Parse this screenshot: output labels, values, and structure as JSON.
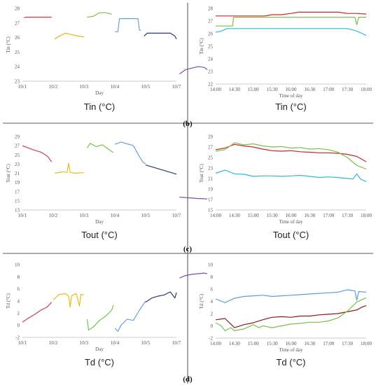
{
  "panel_labels": [
    "(b)",
    "(c)",
    "(d)"
  ],
  "chart_data": [
    {
      "id": "tin-days",
      "type": "line",
      "title": "Tin (°C)",
      "xlabel": "Day",
      "ylabel": "Tin (°C)",
      "categories": [
        "10/1",
        "10/2",
        "10/3",
        "10/4",
        "10/5",
        "10/7"
      ],
      "ylim": [
        23,
        28
      ],
      "yticks": [
        "23",
        "24",
        "25",
        "26",
        "27",
        "28"
      ],
      "series": [
        {
          "color": "#e03030",
          "x": [
            0.05,
            0.1,
            0.3,
            0.6,
            0.95
          ],
          "y": [
            27.35,
            27.4,
            27.4,
            27.4,
            27.4
          ]
        },
        {
          "color": "#e0b020",
          "x": [
            1.05,
            1.2,
            1.4,
            1.6,
            1.8,
            2.0
          ],
          "y": [
            25.9,
            26.1,
            26.3,
            26.2,
            26.1,
            26.05
          ]
        },
        {
          "color": "#7cbf4a",
          "x": [
            2.1,
            2.3,
            2.5,
            2.7,
            2.9
          ],
          "y": [
            27.4,
            27.45,
            27.7,
            27.7,
            27.6
          ]
        },
        {
          "color": "#6aa0d8",
          "x": [
            3.0,
            3.1,
            3.15,
            3.3,
            3.5,
            3.75,
            3.8,
            3.85
          ],
          "y": [
            26.4,
            26.4,
            27.3,
            27.3,
            27.3,
            27.3,
            26.5,
            26.5
          ]
        },
        {
          "color": "#2a3a78",
          "x": [
            3.95,
            4.05,
            4.2,
            4.5,
            4.8,
            4.95,
            5.0
          ],
          "y": [
            26.1,
            26.3,
            26.3,
            26.3,
            26.3,
            26.1,
            25.9
          ]
        },
        {
          "color": "#7a4ea8",
          "x": [
            5.1,
            5.3,
            5.5,
            5.7,
            5.9,
            6.0
          ],
          "y": [
            23.5,
            23.8,
            23.9,
            24.0,
            23.95,
            23.8
          ]
        }
      ]
    },
    {
      "id": "tin-time",
      "type": "line",
      "title": "Tin (°C)",
      "xlabel": "Time of day",
      "ylabel": "Tin (°C)",
      "categories": [
        "14:00",
        "14:30",
        "15:00",
        "15:30",
        "16:00",
        "16:30",
        "17:00",
        "17:30",
        "18:00"
      ],
      "ylim": [
        22,
        28
      ],
      "yticks": [
        "22",
        "23",
        "24",
        "25",
        "26",
        "27",
        "28"
      ],
      "series": [
        {
          "color": "#c0282a",
          "x": [
            0,
            1,
            2,
            2.6,
            3,
            3.5,
            4,
            4.4,
            5,
            6,
            6.5,
            7,
            7.5,
            8
          ],
          "y": [
            27.4,
            27.4,
            27.4,
            27.4,
            27.5,
            27.5,
            27.6,
            27.7,
            27.7,
            27.7,
            27.7,
            27.6,
            27.6,
            27.55
          ]
        },
        {
          "color": "#7cbf4a",
          "x": [
            0,
            0.5,
            0.9,
            0.95,
            1,
            2,
            3,
            4,
            5,
            6,
            7,
            7.4,
            7.5,
            7.6,
            8
          ],
          "y": [
            26.6,
            26.6,
            26.6,
            27.3,
            27.3,
            27.3,
            27.3,
            27.3,
            27.3,
            27.3,
            27.3,
            27.3,
            26.7,
            27.3,
            27.3
          ]
        },
        {
          "color": "#33b6d6",
          "x": [
            0,
            0.3,
            0.6,
            1,
            2,
            3,
            4,
            5,
            6,
            7,
            7.5,
            7.8,
            8
          ],
          "y": [
            26.1,
            26.2,
            26.4,
            26.4,
            26.4,
            26.4,
            26.4,
            26.4,
            26.4,
            26.4,
            26.2,
            26.0,
            25.85
          ]
        }
      ]
    },
    {
      "id": "tout-days",
      "type": "line",
      "title": "Tout (°C)",
      "xlabel": "Day",
      "ylabel": "Tout (°C)",
      "categories": [
        "10/1",
        "10/2",
        "10/3",
        "10/4",
        "10/5",
        "10/7"
      ],
      "ylim": [
        13,
        29
      ],
      "yticks": [
        "13",
        "15",
        "17",
        "19",
        "21",
        "23",
        "25",
        "27",
        "29"
      ],
      "series": [
        {
          "color": "#d04050",
          "x": [
            0.0,
            0.2,
            0.4,
            0.6,
            0.8,
            0.95
          ],
          "y": [
            27.0,
            26.5,
            26.0,
            25.6,
            24.8,
            23.5
          ]
        },
        {
          "color": "#e0c020",
          "x": [
            1.05,
            1.3,
            1.45,
            1.5,
            1.55,
            1.7,
            1.9,
            2.0
          ],
          "y": [
            21.0,
            21.3,
            21.2,
            23.2,
            21.2,
            21.0,
            21.1,
            21.1
          ]
        },
        {
          "color": "#7cbf4a",
          "x": [
            2.1,
            2.2,
            2.4,
            2.6,
            2.8,
            2.95
          ],
          "y": [
            26.5,
            27.5,
            26.8,
            27.2,
            26.2,
            25.5
          ]
        },
        {
          "color": "#6aa0d8",
          "x": [
            3.0,
            3.2,
            3.4,
            3.6,
            3.75,
            3.9,
            4.0
          ],
          "y": [
            27.3,
            27.8,
            27.4,
            27.0,
            25.2,
            23.5,
            23.0
          ]
        },
        {
          "color": "#2a3a78",
          "x": [
            4.0,
            4.2,
            4.4,
            4.6,
            4.8,
            5.0
          ],
          "y": [
            22.8,
            22.4,
            22.0,
            21.6,
            21.2,
            20.8
          ]
        },
        {
          "color": "#7a4ea8",
          "x": [
            5.1,
            5.3,
            5.5,
            5.7,
            5.9,
            6.0
          ],
          "y": [
            15.8,
            15.7,
            15.6,
            15.5,
            15.45,
            15.4
          ]
        }
      ]
    },
    {
      "id": "tout-time",
      "type": "line",
      "title": "Tout (°C)",
      "xlabel": "Time of day",
      "ylabel": "Tout (°C)",
      "categories": [
        "14:00",
        "14:30",
        "15:00",
        "15:30",
        "16:00",
        "16:30",
        "17:00",
        "17:30",
        "18:00"
      ],
      "ylim": [
        15,
        29
      ],
      "yticks": [
        "15",
        "17",
        "19",
        "21",
        "23",
        "25",
        "27",
        "29"
      ],
      "series": [
        {
          "color": "#c0282a",
          "x": [
            0,
            0.5,
            1,
            1.5,
            2,
            2.5,
            3,
            3.5,
            4,
            4.5,
            5,
            5.5,
            6,
            6.5,
            7,
            7.5,
            8
          ],
          "y": [
            26.5,
            26.8,
            27.5,
            27.2,
            27.0,
            26.6,
            26.3,
            26.2,
            26.3,
            26.1,
            26.0,
            25.9,
            25.9,
            25.8,
            25.6,
            25.2,
            24.2
          ]
        },
        {
          "color": "#7cbf4a",
          "x": [
            0,
            0.5,
            1,
            1.5,
            2,
            2.5,
            3,
            3.5,
            4,
            4.5,
            5,
            5.5,
            6,
            6.5,
            7,
            7.5,
            8
          ],
          "y": [
            26.2,
            26.5,
            27.8,
            27.4,
            27.6,
            27.2,
            27.0,
            27.1,
            26.8,
            26.9,
            26.6,
            26.7,
            26.5,
            26.0,
            25.0,
            23.5,
            22.8
          ]
        },
        {
          "color": "#33b6d6",
          "x": [
            0,
            0.5,
            1,
            1.5,
            2,
            2.5,
            3,
            3.5,
            4,
            4.5,
            5,
            5.5,
            6,
            6.5,
            7,
            7.3,
            7.5,
            7.7,
            8
          ],
          "y": [
            22.0,
            22.6,
            21.9,
            21.8,
            21.4,
            21.5,
            21.5,
            21.4,
            21.5,
            21.6,
            21.4,
            21.2,
            21.3,
            21.2,
            21.0,
            20.9,
            21.9,
            20.9,
            20.4
          ]
        }
      ]
    },
    {
      "id": "td-days",
      "type": "line",
      "title": "Td (°C)",
      "xlabel": "Day",
      "ylabel": "Td (°C)",
      "categories": [
        "10/1",
        "10/2",
        "10/3",
        "10/4",
        "10/5",
        "10/7"
      ],
      "ylim": [
        -2,
        10
      ],
      "yticks": [
        "-2",
        "0",
        "2",
        "4",
        "6",
        "8",
        "10"
      ],
      "series": [
        {
          "color": "#d04050",
          "x": [
            0.0,
            0.2,
            0.4,
            0.6,
            0.8,
            0.95
          ],
          "y": [
            0.5,
            1.2,
            1.8,
            2.5,
            3.0,
            3.8
          ]
        },
        {
          "color": "#e0c020",
          "x": [
            1.0,
            1.2,
            1.4,
            1.5,
            1.55,
            1.6,
            1.75,
            1.85,
            1.9,
            2.0
          ],
          "y": [
            4.2,
            5.1,
            5.2,
            4.8,
            3.0,
            4.9,
            5.2,
            3.2,
            5.1,
            5.0
          ]
        },
        {
          "color": "#7cbf4a",
          "x": [
            2.1,
            2.15,
            2.3,
            2.5,
            2.7,
            2.9,
            2.95
          ],
          "y": [
            1.0,
            -0.8,
            -0.3,
            0.8,
            1.5,
            2.5,
            3.3
          ]
        },
        {
          "color": "#6aa0d8",
          "x": [
            3.0,
            3.1,
            3.2,
            3.4,
            3.6,
            3.8,
            4.0
          ],
          "y": [
            -0.5,
            -1.0,
            0.0,
            1.0,
            0.8,
            2.5,
            4.0
          ]
        },
        {
          "color": "#2a3a78",
          "x": [
            4.0,
            4.2,
            4.4,
            4.6,
            4.8,
            4.95,
            5.0
          ],
          "y": [
            3.8,
            4.5,
            4.8,
            5.0,
            5.5,
            4.5,
            5.4
          ]
        },
        {
          "color": "#7a4ea8",
          "x": [
            5.1,
            5.3,
            5.5,
            5.7,
            5.9,
            6.0
          ],
          "y": [
            7.8,
            8.2,
            8.4,
            8.5,
            8.6,
            8.5
          ]
        }
      ]
    },
    {
      "id": "td-time",
      "type": "line",
      "title": "Td (°C)",
      "xlabel": "Time of day",
      "ylabel": "Td (°C)",
      "categories": [
        "14:00",
        "14:30",
        "15:00",
        "15:30",
        "16:00",
        "16:30",
        "17:00",
        "17:30",
        "18:00"
      ],
      "ylim": [
        -2,
        10
      ],
      "yticks": [
        "-2",
        "0",
        "2",
        "4",
        "6",
        "8",
        "10"
      ],
      "series": [
        {
          "color": "#5aa0dc",
          "x": [
            0,
            0.5,
            1,
            1.5,
            2,
            2.5,
            3,
            3.5,
            4,
            4.5,
            5,
            5.5,
            6,
            6.5,
            7,
            7.4,
            7.5,
            7.6,
            8
          ],
          "y": [
            4.4,
            3.8,
            4.5,
            4.8,
            4.9,
            5.0,
            4.8,
            4.9,
            5.0,
            5.1,
            5.2,
            5.3,
            5.4,
            5.5,
            5.9,
            5.7,
            4.2,
            5.6,
            5.5
          ]
        },
        {
          "color": "#8b1a1a",
          "x": [
            0,
            0.5,
            1,
            1.5,
            2,
            2.5,
            3,
            3.5,
            4,
            4.5,
            5,
            5.5,
            6,
            6.5,
            7,
            7.5,
            7.8,
            8
          ],
          "y": [
            1.0,
            1.2,
            -0.3,
            0.2,
            0.5,
            1.0,
            1.4,
            1.5,
            1.4,
            1.6,
            1.6,
            1.8,
            1.9,
            2.0,
            2.3,
            2.6,
            3.1,
            3.3
          ]
        },
        {
          "color": "#7cbf4a",
          "x": [
            0,
            0.3,
            0.5,
            0.8,
            1,
            1.5,
            2,
            2.3,
            2.5,
            3,
            3.5,
            4,
            4.5,
            5,
            5.5,
            6,
            6.5,
            7,
            7.5,
            8
          ],
          "y": [
            0.5,
            0.0,
            -0.8,
            -0.3,
            -0.8,
            -0.5,
            0.2,
            -0.3,
            0.0,
            -0.3,
            0.0,
            0.3,
            0.4,
            0.6,
            0.6,
            0.8,
            1.3,
            2.4,
            3.9,
            4.6
          ]
        }
      ]
    }
  ]
}
